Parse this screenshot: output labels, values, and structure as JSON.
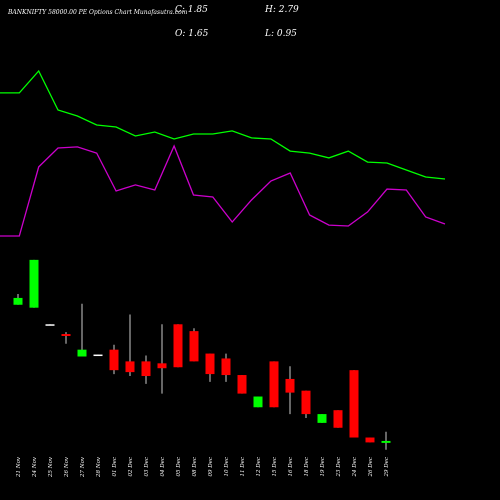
{
  "chart_data": {
    "type": "candlestick",
    "title": "BANKNIFTY 58000.00 PE Options Chart Munafasutra.com",
    "ohlc_labels": [
      "C: 1.85",
      "H: 2.79",
      "O: 1.65",
      "L: 0.95"
    ],
    "categories": [
      "21 Nov",
      "24 Nov",
      "25 Nov",
      "26 Nov",
      "27 Nov",
      "28 Nov",
      "01 Dec",
      "02 Dec",
      "03 Dec",
      "04 Dec",
      "05 Dec",
      "08 Dec",
      "09 Dec",
      "10 Dec",
      "11 Dec",
      "12 Dec",
      "15 Dec",
      "16 Dec",
      "18 Dec",
      "19 Dec",
      "23 Dec",
      "24 Dec",
      "26 Dec",
      "29 Dec"
    ],
    "open": [
      15.8,
      15.5,
      13.7,
      12.8,
      10.5,
      10.7,
      11.2,
      10.0,
      10.0,
      9.8,
      13.8,
      13.1,
      10.8,
      10.3,
      8.6,
      5.3,
      10.0,
      8.2,
      7.0,
      3.7,
      5.0,
      9.1,
      2.2,
      1.65
    ],
    "high": [
      16.9,
      20.4,
      13.8,
      13.0,
      15.9,
      10.7,
      11.7,
      14.8,
      10.6,
      13.8,
      13.8,
      13.4,
      10.8,
      10.8,
      8.6,
      6.4,
      10.0,
      9.5,
      7.0,
      4.6,
      5.0,
      9.1,
      2.2,
      2.79
    ],
    "low": [
      15.8,
      15.5,
      13.7,
      11.8,
      10.5,
      10.6,
      8.7,
      8.5,
      7.7,
      6.7,
      9.4,
      10.0,
      7.9,
      7.9,
      6.7,
      5.3,
      5.3,
      4.6,
      4.2,
      3.7,
      3.2,
      2.2,
      1.7,
      0.95
    ],
    "close": [
      16.5,
      20.4,
      13.8,
      12.6,
      11.2,
      10.6,
      9.1,
      8.9,
      8.5,
      9.3,
      9.4,
      10.0,
      8.7,
      8.6,
      6.7,
      6.4,
      5.3,
      6.8,
      4.6,
      4.6,
      3.2,
      2.2,
      1.7,
      1.85
    ],
    "ylim": [
      0,
      21
    ],
    "up_color": "#00ff00",
    "down_color": "#ff0000",
    "flat_color": "#ffffff",
    "series": [
      {
        "color": "#00ff00",
        "axis": "y2",
        "values": [
          81.7,
          81.7,
          93.9,
          72.2,
          68.9,
          63.9,
          62.8,
          57.8,
          60.0,
          56.1,
          58.9,
          58.9,
          60.6,
          56.7,
          56.1,
          49.4,
          48.3,
          45.6,
          49.4,
          43.3,
          42.8,
          38.9,
          35.0,
          33.9
        ]
      },
      {
        "color": "#cc00cc",
        "axis": "y2",
        "values": [
          2.2,
          2.2,
          40.6,
          51.1,
          51.7,
          48.3,
          27.2,
          30.6,
          27.8,
          52.2,
          25.0,
          23.9,
          10.0,
          22.2,
          32.8,
          37.2,
          13.9,
          8.3,
          7.8,
          15.6,
          28.3,
          27.8,
          12.8,
          8.9
        ]
      }
    ],
    "y2lim": [
      0,
      100
    ]
  }
}
